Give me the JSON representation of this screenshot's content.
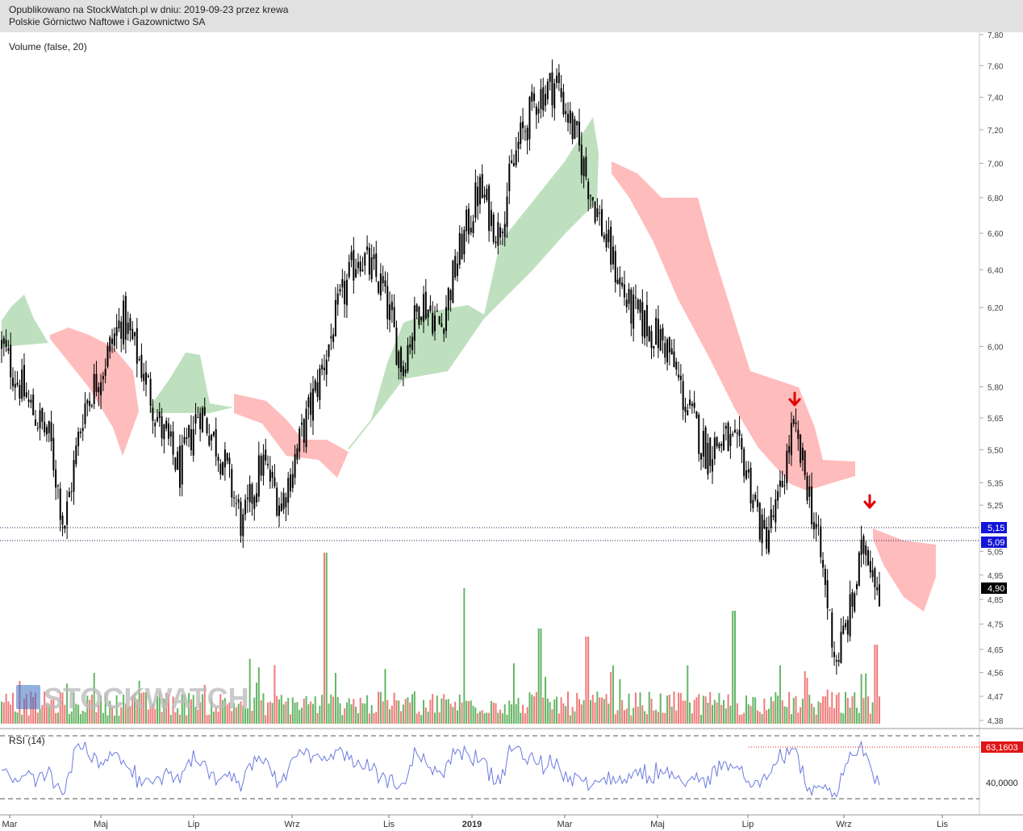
{
  "header": {
    "line1": "Opublikowano na StockWatch.pl w dniu: 2019-09-23 przez krewa",
    "line2": "Polskie Górnictwo Naftowe i Gazownictwo SA"
  },
  "volume_label": "Volume (false, 20)",
  "rsi_label": "RSI (14)",
  "watermark": "STOCKWATCH",
  "colors": {
    "up": "#65b565",
    "down": "#f07a7a",
    "cloud_bull": "#bfe0bf",
    "cloud_bear": "#ffbcbc",
    "rsi": "#6b7be0",
    "level_tag": "#1515d8",
    "last_tag": "#000000",
    "rsi_tag": "#e01515",
    "arrow": "#e00000"
  },
  "price_axis_ticks": [
    "7,80",
    "7,60",
    "7,40",
    "7,20",
    "7,00",
    "6,80",
    "6,60",
    "6,40",
    "6,20",
    "6,00",
    "5,80",
    "5,65",
    "5,50",
    "5,35",
    "5,25",
    "5,05",
    "4,95",
    "4,85",
    "4,75",
    "4,65",
    "4,56",
    "4,47",
    "4,38"
  ],
  "level_tags": [
    "5,15",
    "5,09"
  ],
  "last_price_tag": "4,90",
  "rsi_tags": [
    "63,1603",
    "40,0000"
  ],
  "chart_data": {
    "type": "candlestick",
    "x_ticks": [
      "Mar",
      "Maj",
      "Lip",
      "Wrz",
      "Lis",
      "2019",
      "Mar",
      "Maj",
      "Lip",
      "Wrz",
      "Lis"
    ],
    "ylim": [
      4.38,
      7.8
    ],
    "y_scale": "log",
    "horizontal_levels": [
      5.15,
      5.09
    ],
    "last_close": 4.9,
    "signal_arrows": 2,
    "indicators": [
      "Ichimoku cloud",
      "Volume (false, 20)",
      "RSI (14)"
    ],
    "rsi_last": 63.1603,
    "rsi_level": 40.0,
    "close_path": [
      [
        2018.16,
        6.0
      ],
      [
        2018.22,
        5.7
      ],
      [
        2018.26,
        5.55
      ],
      [
        2018.29,
        5.15
      ],
      [
        2018.33,
        5.7
      ],
      [
        2018.37,
        5.9
      ],
      [
        2018.41,
        6.15
      ],
      [
        2018.45,
        5.9
      ],
      [
        2018.49,
        5.6
      ],
      [
        2018.53,
        5.4
      ],
      [
        2018.57,
        5.7
      ],
      [
        2018.62,
        5.45
      ],
      [
        2018.66,
        5.15
      ],
      [
        2018.7,
        5.45
      ],
      [
        2018.74,
        5.25
      ],
      [
        2018.78,
        5.55
      ],
      [
        2018.82,
        5.85
      ],
      [
        2018.86,
        6.2
      ],
      [
        2018.9,
        6.5
      ],
      [
        2018.95,
        6.3
      ],
      [
        2018.99,
        5.9
      ],
      [
        2019.03,
        6.25
      ],
      [
        2019.07,
        6.1
      ],
      [
        2019.11,
        6.5
      ],
      [
        2019.15,
        6.85
      ],
      [
        2019.19,
        6.6
      ],
      [
        2019.23,
        7.1
      ],
      [
        2019.27,
        7.4
      ],
      [
        2019.31,
        7.5
      ],
      [
        2019.35,
        7.15
      ],
      [
        2019.38,
        6.85
      ],
      [
        2019.42,
        6.5
      ],
      [
        2019.46,
        6.2
      ],
      [
        2019.5,
        6.1
      ],
      [
        2019.54,
        6.0
      ],
      [
        2019.58,
        5.7
      ],
      [
        2019.62,
        5.5
      ],
      [
        2019.66,
        5.55
      ],
      [
        2019.7,
        5.45
      ],
      [
        2019.74,
        5.1
      ],
      [
        2019.77,
        5.25
      ],
      [
        2019.8,
        5.6
      ],
      [
        2019.83,
        5.35
      ],
      [
        2019.86,
        5.0
      ],
      [
        2019.89,
        4.6
      ],
      [
        2019.92,
        4.8
      ],
      [
        2019.95,
        5.1
      ],
      [
        2019.98,
        4.9
      ]
    ]
  }
}
